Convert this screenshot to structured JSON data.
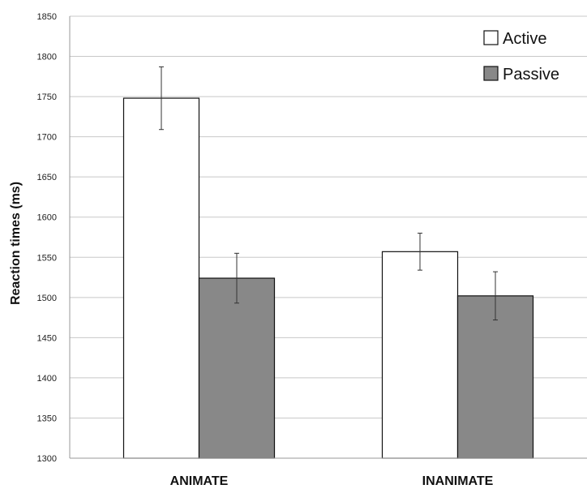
{
  "chart_data": {
    "type": "bar",
    "ylabel": "Reaction times (ms)",
    "ylim": [
      1300,
      1850
    ],
    "yticks": [
      1300,
      1350,
      1400,
      1450,
      1500,
      1550,
      1600,
      1650,
      1700,
      1750,
      1800,
      1850
    ],
    "grid": true,
    "legend_position": "top-right",
    "categories": [
      "ANIMATE",
      "INANIMATE"
    ],
    "series": [
      {
        "name": "Active",
        "color": "#ffffff",
        "values": [
          1748,
          1557
        ],
        "error": [
          39,
          23
        ]
      },
      {
        "name": "Passive",
        "color": "#888888",
        "values": [
          1524,
          1502
        ],
        "error": [
          31,
          30
        ]
      }
    ]
  }
}
